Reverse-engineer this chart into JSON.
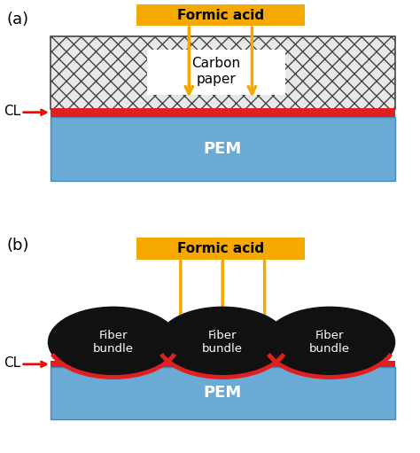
{
  "fig_width": 4.74,
  "fig_height": 5.11,
  "dpi": 100,
  "bg_color": "#ffffff",
  "panel_a_label": "(a)",
  "panel_b_label": "(b)",
  "formic_acid_label": "Formic acid",
  "formic_acid_box_color": "#F5A800",
  "formic_acid_text_color": "#000000",
  "arrow_color": "#F5A800",
  "carbon_paper_label": "Carbon\npaper",
  "pem_label": "PEM",
  "pem_color": "#6aaad4",
  "cl_label": "CL",
  "cl_color": "#e02020",
  "fiber_label": "Fiber\nbundle",
  "fiber_color": "#111111",
  "fiber_text_color": "#ffffff",
  "hatch_color": "#888888",
  "red_arc_color": "#e02020"
}
